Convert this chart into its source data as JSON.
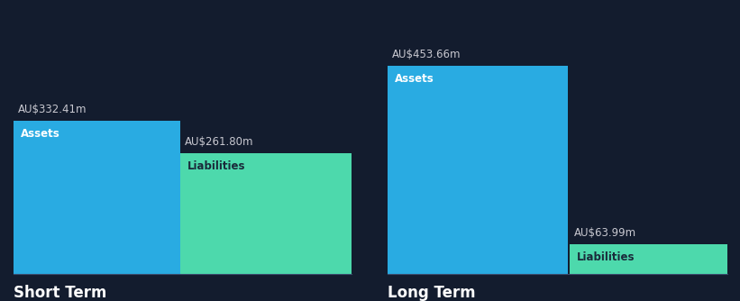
{
  "background_color": "#131c2e",
  "bar_color_assets": "#29abe2",
  "bar_color_liabilities": "#4dd9ac",
  "text_color_white": "#ffffff",
  "text_color_value": "#c8c8d0",
  "text_color_liab_label": "#1a2a3a",
  "groups": [
    {
      "label": "Short Term",
      "assets_value": 332.41,
      "liabilities_value": 261.8,
      "assets_label": "Assets",
      "liabilities_label": "Liabilities"
    },
    {
      "label": "Long Term",
      "assets_value": 453.66,
      "liabilities_value": 63.99,
      "assets_label": "Assets",
      "liabilities_label": "Liabilities"
    }
  ],
  "currency_prefix": "AU$",
  "currency_suffix": "m",
  "max_value": 500,
  "value_fontsize": 8.5,
  "group_label_fontsize": 12,
  "bar_inner_label_fontsize": 8.5,
  "figwidth": 8.21,
  "figheight": 3.34,
  "dpi": 100
}
